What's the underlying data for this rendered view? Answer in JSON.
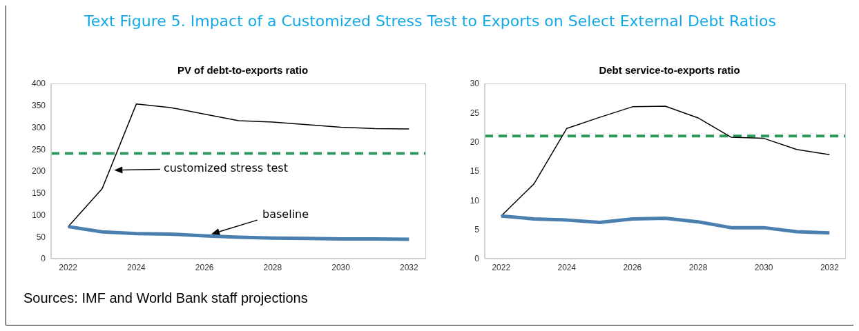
{
  "chart_data": [
    {
      "type": "other",
      "title": "Text Figure 5. Impact of a Customized Stress Test to Exports on Select External Debt Ratios"
    },
    {
      "type": "line",
      "title": "PV of debt-to-exports ratio",
      "categories": [
        "2022",
        null,
        "2024",
        null,
        "2026",
        null,
        "2028",
        null,
        "2030",
        null,
        "2032"
      ],
      "ylim": [
        0,
        400
      ],
      "yticks": [
        0,
        50,
        100,
        150,
        200,
        250,
        300,
        350,
        400
      ],
      "series": [
        {
          "name": "customized stress test",
          "color": "#000000",
          "values": [
            73,
            160,
            353,
            345,
            330,
            315,
            312,
            306,
            300,
            297,
            296
          ]
        },
        {
          "name": "baseline",
          "color": "#4a7fb0",
          "values": [
            73,
            61,
            57,
            56,
            52,
            49,
            47,
            46,
            45,
            45,
            44
          ]
        }
      ],
      "ref_lines": [
        {
          "axis": "y",
          "value": 240,
          "color": "#2e9b5e",
          "line_style": "dashed"
        }
      ],
      "annotations": [
        "Sources: IMF and World Bank staff projections"
      ]
    },
    {
      "type": "line",
      "title": "Debt service-to-exports ratio",
      "categories": [
        "2022",
        null,
        "2024",
        null,
        "2026",
        null,
        "2028",
        null,
        "2030",
        null,
        "2032"
      ],
      "ylim": [
        0,
        30
      ],
      "yticks": [
        0,
        5,
        10,
        15,
        20,
        25,
        30
      ],
      "series": [
        {
          "color": "#000000",
          "values": [
            7.3,
            12.8,
            22.3,
            24.2,
            26.0,
            26.1,
            24.1,
            20.8,
            20.6,
            18.7,
            17.8
          ]
        },
        {
          "color": "#4a7fb0",
          "values": [
            7.3,
            6.8,
            6.6,
            6.2,
            6.8,
            6.9,
            6.3,
            5.3,
            5.3,
            4.6,
            4.4
          ]
        }
      ],
      "ref_lines": [
        {
          "axis": "y",
          "value": 21,
          "color": "#2e9b5e",
          "line_style": "dashed"
        }
      ]
    }
  ]
}
